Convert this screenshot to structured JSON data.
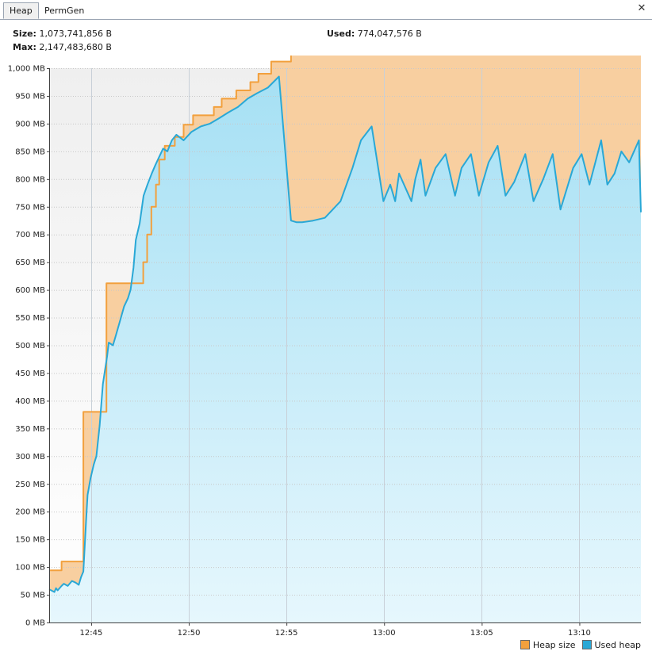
{
  "tabs": [
    {
      "label": "Heap",
      "active": true
    },
    {
      "label": "PermGen",
      "active": false
    }
  ],
  "info": {
    "size_label": "Size:",
    "size_value": "1,073,741,856 B",
    "max_label": "Max:",
    "max_value": "2,147,483,680 B",
    "used_label": "Used:",
    "used_value": "774,047,576 B"
  },
  "legend": {
    "heap_size": "Heap size",
    "used_heap": "Used heap"
  },
  "colors": {
    "heap_size": "#f2a03d",
    "used_heap": "#29a8d6",
    "heap_fill": "#f8cfa0",
    "used_fill_top": "#a6e0f4",
    "used_fill_bottom": "#e6f7fd"
  },
  "chart_data": {
    "type": "area",
    "xlabel": "",
    "ylabel": "",
    "y_unit": "MB",
    "ylim": [
      0,
      1000
    ],
    "yticks": [
      "0 MB",
      "50 MB",
      "100 MB",
      "150 MB",
      "200 MB",
      "250 MB",
      "300 MB",
      "350 MB",
      "400 MB",
      "450 MB",
      "500 MB",
      "550 MB",
      "600 MB",
      "650 MB",
      "700 MB",
      "750 MB",
      "800 MB",
      "850 MB",
      "900 MB",
      "950 MB",
      "1,000 MB"
    ],
    "x_unit": "minutes",
    "xlim": [
      "12:42:51",
      "13:13:09"
    ],
    "xticks": [
      "12:45",
      "12:50",
      "12:55",
      "13:00",
      "13:05",
      "13:10"
    ],
    "grid": true,
    "legend_position": "bottom-right",
    "series": [
      {
        "name": "Heap size",
        "x": [
          "12:42:51",
          "12:43:29",
          "12:43:29",
          "12:44:36",
          "12:44:36",
          "12:45:47",
          "12:45:47",
          "12:47:40",
          "12:47:40",
          "12:47:52",
          "12:47:52",
          "12:48:05",
          "12:48:05",
          "12:48:19",
          "12:48:19",
          "12:48:29",
          "12:48:29",
          "12:48:46",
          "12:48:46",
          "12:49:17",
          "12:49:17",
          "12:49:44",
          "12:49:44",
          "12:50:13",
          "12:50:13",
          "12:51:17",
          "12:51:17",
          "12:51:41",
          "12:51:41",
          "12:52:26",
          "12:52:26",
          "12:53:09",
          "12:53:09",
          "12:53:34",
          "12:53:34",
          "12:54:13",
          "12:54:13",
          "12:55:14",
          "12:55:14",
          "12:55:14",
          "12:55:14",
          "12:55:14",
          "12:55:14",
          "12:55:14",
          "12:55:14",
          "12:55:14",
          "12:55:14",
          "13:13:09"
        ],
        "values": [
          94,
          94,
          110,
          110,
          380,
          380,
          612,
          612,
          650,
          650,
          700,
          700,
          750,
          750,
          790,
          790,
          835,
          835,
          860,
          860,
          876,
          876,
          898,
          898,
          915,
          915,
          930,
          930,
          945,
          945,
          960,
          960,
          975,
          975,
          990,
          990,
          1012,
          1012,
          1012,
          1012,
          1012,
          1012,
          1012,
          1012,
          1012,
          1012,
          1025,
          1025
        ]
      },
      {
        "name": "Used heap",
        "x": [
          "12:42:51",
          "12:43:07",
          "12:43:12",
          "12:43:17",
          "12:43:29",
          "12:43:36",
          "12:43:48",
          "12:44:01",
          "12:44:12",
          "12:44:22",
          "12:44:29",
          "12:44:36",
          "12:44:44",
          "12:44:49",
          "12:44:58",
          "12:45:08",
          "12:45:16",
          "12:45:26",
          "12:45:36",
          "12:45:49",
          "12:45:54",
          "12:46:07",
          "12:46:17",
          "12:46:29",
          "12:46:41",
          "12:46:53",
          "12:47:01",
          "12:47:10",
          "12:47:17",
          "12:47:29",
          "12:47:41",
          "12:47:53",
          "12:48:06",
          "12:48:17",
          "12:48:29",
          "12:48:41",
          "12:48:54",
          "12:49:08",
          "12:49:22",
          "12:49:44",
          "12:50:08",
          "12:50:37",
          "12:51:05",
          "12:51:34",
          "12:52:01",
          "12:52:31",
          "12:53:01",
          "12:53:30",
          "12:54:03",
          "12:54:37",
          "12:55:14",
          "12:55:31",
          "12:55:48",
          "12:56:22",
          "12:56:58",
          "12:57:46",
          "12:58:23",
          "12:58:49",
          "12:59:22",
          "12:59:58",
          "13:00:19",
          "13:00:34",
          "13:00:46",
          "13:01:24",
          "13:01:36",
          "13:01:52",
          "13:02:07",
          "13:02:38",
          "13:03:09",
          "13:03:38",
          "13:03:58",
          "13:04:27",
          "13:04:51",
          "13:05:21",
          "13:05:49",
          "13:06:13",
          "13:06:40",
          "13:07:14",
          "13:07:39",
          "13:08:09",
          "13:08:38",
          "13:09:02",
          "13:09:41",
          "13:10:07",
          "13:10:31",
          "13:11:07",
          "13:11:26",
          "13:11:48",
          "13:12:09",
          "13:12:33",
          "13:13:03",
          "13:13:09"
        ],
        "values": [
          60,
          55,
          62,
          58,
          66,
          70,
          66,
          75,
          72,
          68,
          82,
          92,
          180,
          230,
          260,
          285,
          300,
          355,
          430,
          480,
          505,
          500,
          520,
          545,
          570,
          585,
          600,
          640,
          690,
          720,
          770,
          790,
          810,
          825,
          840,
          855,
          850,
          870,
          880,
          870,
          885,
          895,
          900,
          910,
          920,
          930,
          945,
          955,
          965,
          985,
          725,
          722,
          722,
          725,
          730,
          760,
          820,
          870,
          895,
          760,
          790,
          760,
          810,
          760,
          800,
          835,
          770,
          820,
          845,
          770,
          820,
          845,
          770,
          830,
          860,
          770,
          795,
          845,
          760,
          800,
          845,
          745,
          820,
          845,
          790,
          870,
          790,
          810,
          850,
          830,
          870,
          740
        ]
      }
    ]
  }
}
